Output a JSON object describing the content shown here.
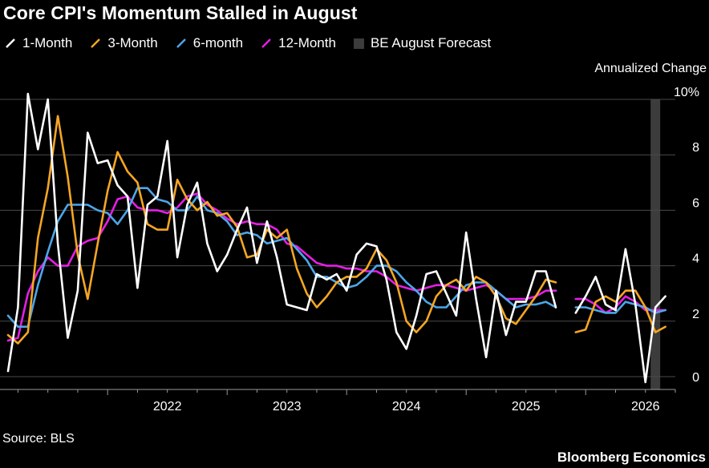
{
  "title": "Core CPI's Momentum Stalled in August",
  "unit_label": "Annualized Change",
  "source": "Source: BLS",
  "brand": "Bloomberg Economics",
  "legend": [
    {
      "label": "1-Month",
      "color": "#ffffff",
      "type": "line"
    },
    {
      "label": "3-Month",
      "color": "#f5a623",
      "type": "line"
    },
    {
      "label": "6-month",
      "color": "#4da6e8",
      "type": "line"
    },
    {
      "label": "12-Month",
      "color": "#e61ee6",
      "type": "line"
    },
    {
      "label": "BE August Forecast",
      "color": "#3c3c3c",
      "type": "box"
    }
  ],
  "chart_data": {
    "type": "line",
    "x_start": "2021-03",
    "y_ticks": [
      "0",
      "2",
      "4",
      "6",
      "8",
      "10%"
    ],
    "ylim": [
      0,
      10
    ],
    "x_tick_labels": [
      "2022",
      "2023",
      "2024",
      "2025",
      "2026"
    ],
    "forecast_month": "2026-08",
    "grid": true,
    "series": [
      {
        "name": "1-Month",
        "color": "#ffffff",
        "values": [
          0.2,
          2.5,
          10.2,
          8.2,
          10.0,
          4.8,
          1.4,
          3.1,
          8.8,
          7.7,
          7.8,
          6.9,
          6.5,
          3.2,
          6.2,
          6.5,
          8.5,
          4.3,
          6.2,
          7.0,
          4.8,
          3.8,
          4.4,
          5.3,
          6.1,
          4.1,
          5.6,
          4.3,
          2.6,
          2.5,
          2.4,
          3.7,
          3.5,
          3.7,
          3.1,
          4.4,
          4.8,
          4.7,
          3.5,
          1.6,
          1.0,
          2.2,
          3.7,
          3.8,
          3.0,
          2.2,
          5.2,
          2.8,
          0.7,
          3.1,
          1.5,
          2.7,
          2.7,
          3.8,
          3.8,
          2.5,
          null,
          2.3,
          2.9,
          3.6,
          2.6,
          2.4,
          4.6,
          2.6,
          -0.2,
          2.5,
          2.9
        ]
      },
      {
        "name": "3-Month",
        "color": "#f5a623",
        "values": [
          1.5,
          1.2,
          1.6,
          5.0,
          6.8,
          9.4,
          7.2,
          4.4,
          2.8,
          4.8,
          6.7,
          8.1,
          7.4,
          7.0,
          5.5,
          5.3,
          5.3,
          7.1,
          6.4,
          6.0,
          6.3,
          5.8,
          5.9,
          5.4,
          4.3,
          4.4,
          5.3,
          5.0,
          5.3,
          3.9,
          3.0,
          2.5,
          2.9,
          3.4,
          3.6,
          3.6,
          3.9,
          4.6,
          4.2,
          3.4,
          2.0,
          1.6,
          2.0,
          2.9,
          3.3,
          3.5,
          3.1,
          3.6,
          3.4,
          2.9,
          2.1,
          1.9,
          2.4,
          2.9,
          3.5,
          3.4,
          null,
          1.6,
          1.7,
          2.7,
          2.9,
          2.7,
          3.1,
          3.1,
          2.5,
          1.6,
          1.8
        ]
      },
      {
        "name": "6-month",
        "color": "#4da6e8",
        "values": [
          2.2,
          1.8,
          1.8,
          3.3,
          4.5,
          5.6,
          6.2,
          6.2,
          6.2,
          6.0,
          5.9,
          5.5,
          6.0,
          6.8,
          6.8,
          6.4,
          6.3,
          6.0,
          6.0,
          6.5,
          6.0,
          5.9,
          5.6,
          5.1,
          5.2,
          5.1,
          4.8,
          4.9,
          5.0,
          4.6,
          4.2,
          3.6,
          3.6,
          3.4,
          3.2,
          3.3,
          3.6,
          4.0,
          4.0,
          3.8,
          3.4,
          3.1,
          2.7,
          2.5,
          2.5,
          2.9,
          3.3,
          3.4,
          3.4,
          3.1,
          2.8,
          2.5,
          2.6,
          2.6,
          2.7,
          2.5,
          null,
          2.5,
          2.5,
          2.4,
          2.3,
          2.3,
          2.7,
          2.6,
          2.5,
          2.3,
          2.4
        ]
      },
      {
        "name": "12-Month",
        "color": "#e61ee6",
        "values": [
          1.3,
          1.4,
          3.0,
          3.8,
          4.3,
          4.0,
          4.0,
          4.7,
          4.9,
          5.0,
          5.6,
          6.4,
          6.5,
          6.1,
          6.0,
          6.0,
          5.9,
          6.1,
          6.5,
          6.6,
          6.2,
          6.0,
          5.7,
          5.5,
          5.6,
          5.5,
          5.5,
          5.3,
          4.8,
          4.7,
          4.4,
          4.1,
          4.0,
          4.0,
          3.9,
          3.9,
          3.8,
          3.8,
          3.6,
          3.3,
          3.2,
          3.1,
          3.2,
          3.3,
          3.3,
          3.2,
          3.1,
          3.2,
          3.3,
          3.1,
          2.8,
          2.8,
          2.8,
          2.9,
          3.1,
          3.1,
          null,
          2.8,
          2.8,
          2.6,
          2.3,
          2.5,
          2.9,
          2.7,
          2.4,
          2.4,
          2.4
        ]
      }
    ]
  }
}
